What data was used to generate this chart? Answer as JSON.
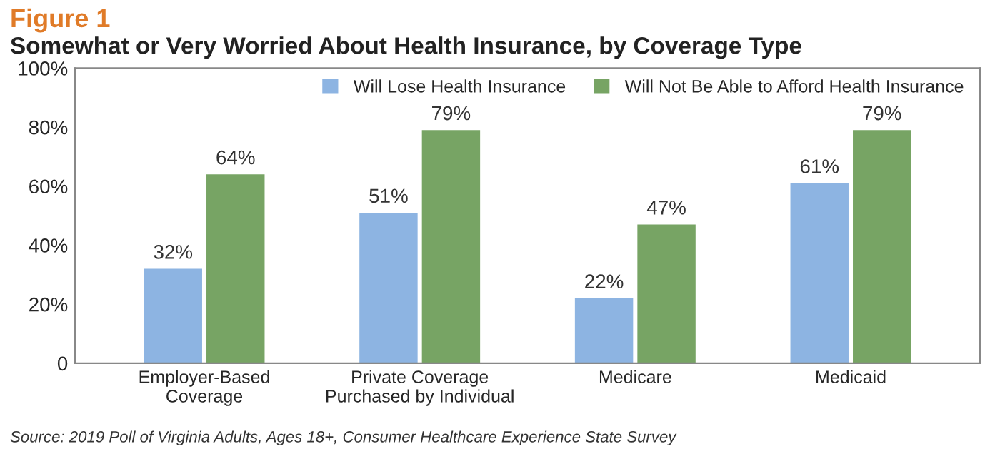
{
  "chart_data": {
    "type": "bar",
    "title": "Figure 1",
    "subtitle": "Somewhat or Very Worried About Health Insurance, by Coverage Type",
    "categories": [
      "Employer-Based\nCoverage",
      "Private Coverage\nPurchased by Individual",
      "Medicare",
      "Medicaid"
    ],
    "series": [
      {
        "name": "Will Lose Health Insurance",
        "color": "#8db4e2",
        "values": [
          32,
          51,
          22,
          61
        ],
        "value_labels": [
          "32%",
          "51%",
          "22%",
          "61%"
        ]
      },
      {
        "name": "Will Not Be Able to Afford Health Insurance",
        "color": "#77a464",
        "values": [
          64,
          79,
          47,
          79
        ],
        "value_labels": [
          "64%",
          "79%",
          "47%",
          "79%"
        ]
      }
    ],
    "ylim": [
      0,
      100
    ],
    "yticks": [
      {
        "value": 0,
        "label": "0"
      },
      {
        "value": 20,
        "label": "20%"
      },
      {
        "value": 40,
        "label": "40%"
      },
      {
        "value": 60,
        "label": "60%"
      },
      {
        "value": 80,
        "label": "80%"
      },
      {
        "value": 100,
        "label": "100%"
      }
    ],
    "grid": false,
    "legend": "top right",
    "annotations": [
      "Source: 2019 Poll of Virginia Adults, Ages 18+, Consumer Healthcare Experience State Survey"
    ]
  }
}
